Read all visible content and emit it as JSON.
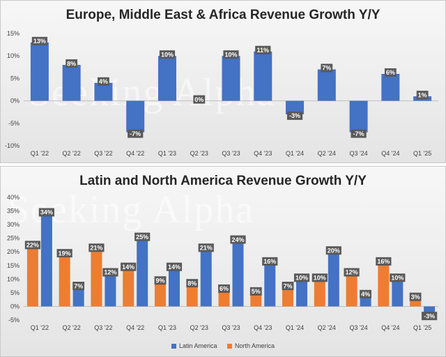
{
  "watermark": "Seeking Alpha",
  "colors": {
    "blue": "#4472C4",
    "orange": "#ED7D31",
    "label_bg": "#595959"
  },
  "chart_data": [
    {
      "type": "bar",
      "title": "Europe, Middle East & Africa Revenue Growth Y/Y",
      "categories": [
        "Q1 '22",
        "Q2 '22",
        "Q3 '22",
        "Q4 '22",
        "Q1 '23",
        "Q2 '23",
        "Q3 '23",
        "Q4 '23",
        "Q1 '24",
        "Q2 '24",
        "Q3 '24",
        "Q4 '24",
        "Q1 '25"
      ],
      "series": [
        {
          "name": "EMEA",
          "color": "#4472C4",
          "values": [
            13,
            8,
            4,
            -7,
            10,
            0,
            10,
            11,
            -3,
            7,
            -7,
            6,
            1
          ]
        }
      ],
      "ylim": [
        -10,
        15
      ],
      "yticks": [
        -10,
        -5,
        0,
        5,
        10,
        15
      ],
      "ytick_labels": [
        "-10%",
        "-5%",
        "0%",
        "5%",
        "10%",
        "15%"
      ],
      "data_labels": [
        "13%",
        "8%",
        "4%",
        "-7%",
        "10%",
        "0%",
        "10%",
        "11%",
        "-3%",
        "7%",
        "-7%",
        "6%",
        "1%"
      ],
      "legend": false
    },
    {
      "type": "bar",
      "title": "Latin and North America Revenue Growth Y/Y",
      "categories": [
        "Q1 '22",
        "Q2 '22",
        "Q3 '22",
        "Q4 '22",
        "Q1 '23",
        "Q2 '23",
        "Q3 '23",
        "Q4 '23",
        "Q1 '24",
        "Q2 '24",
        "Q3 '24",
        "Q4 '24",
        "Q1 '25"
      ],
      "series": [
        {
          "name": "North America",
          "color": "#ED7D31",
          "values": [
            22,
            19,
            21,
            14,
            9,
            8,
            6,
            5,
            7,
            10,
            12,
            16,
            3
          ],
          "data_labels": [
            "22%",
            "19%",
            "21%",
            "14%",
            "9%",
            "8%",
            "6%",
            "5%",
            "7%",
            "10%",
            "12%",
            "16%",
            "3%"
          ]
        },
        {
          "name": "Latin America",
          "color": "#4472C4",
          "values": [
            34,
            7,
            12,
            25,
            14,
            21,
            24,
            16,
            10,
            20,
            4,
            10,
            -3
          ],
          "data_labels": [
            "34%",
            "7%",
            "12%",
            "25%",
            "14%",
            "21%",
            "24%",
            "16%",
            "10%",
            "20%",
            "4%",
            "10%",
            "-3%"
          ]
        }
      ],
      "ylim": [
        -5,
        40
      ],
      "yticks": [
        -5,
        0,
        5,
        10,
        15,
        20,
        25,
        30,
        35,
        40
      ],
      "ytick_labels": [
        "-5%",
        "0%",
        "5%",
        "10%",
        "15%",
        "20%",
        "25%",
        "30%",
        "35%",
        "40%"
      ],
      "legend_entries": [
        {
          "name": "Latin America",
          "color": "#4472C4"
        },
        {
          "name": "North America",
          "color": "#ED7D31"
        }
      ],
      "legend_position": "bottom"
    }
  ]
}
